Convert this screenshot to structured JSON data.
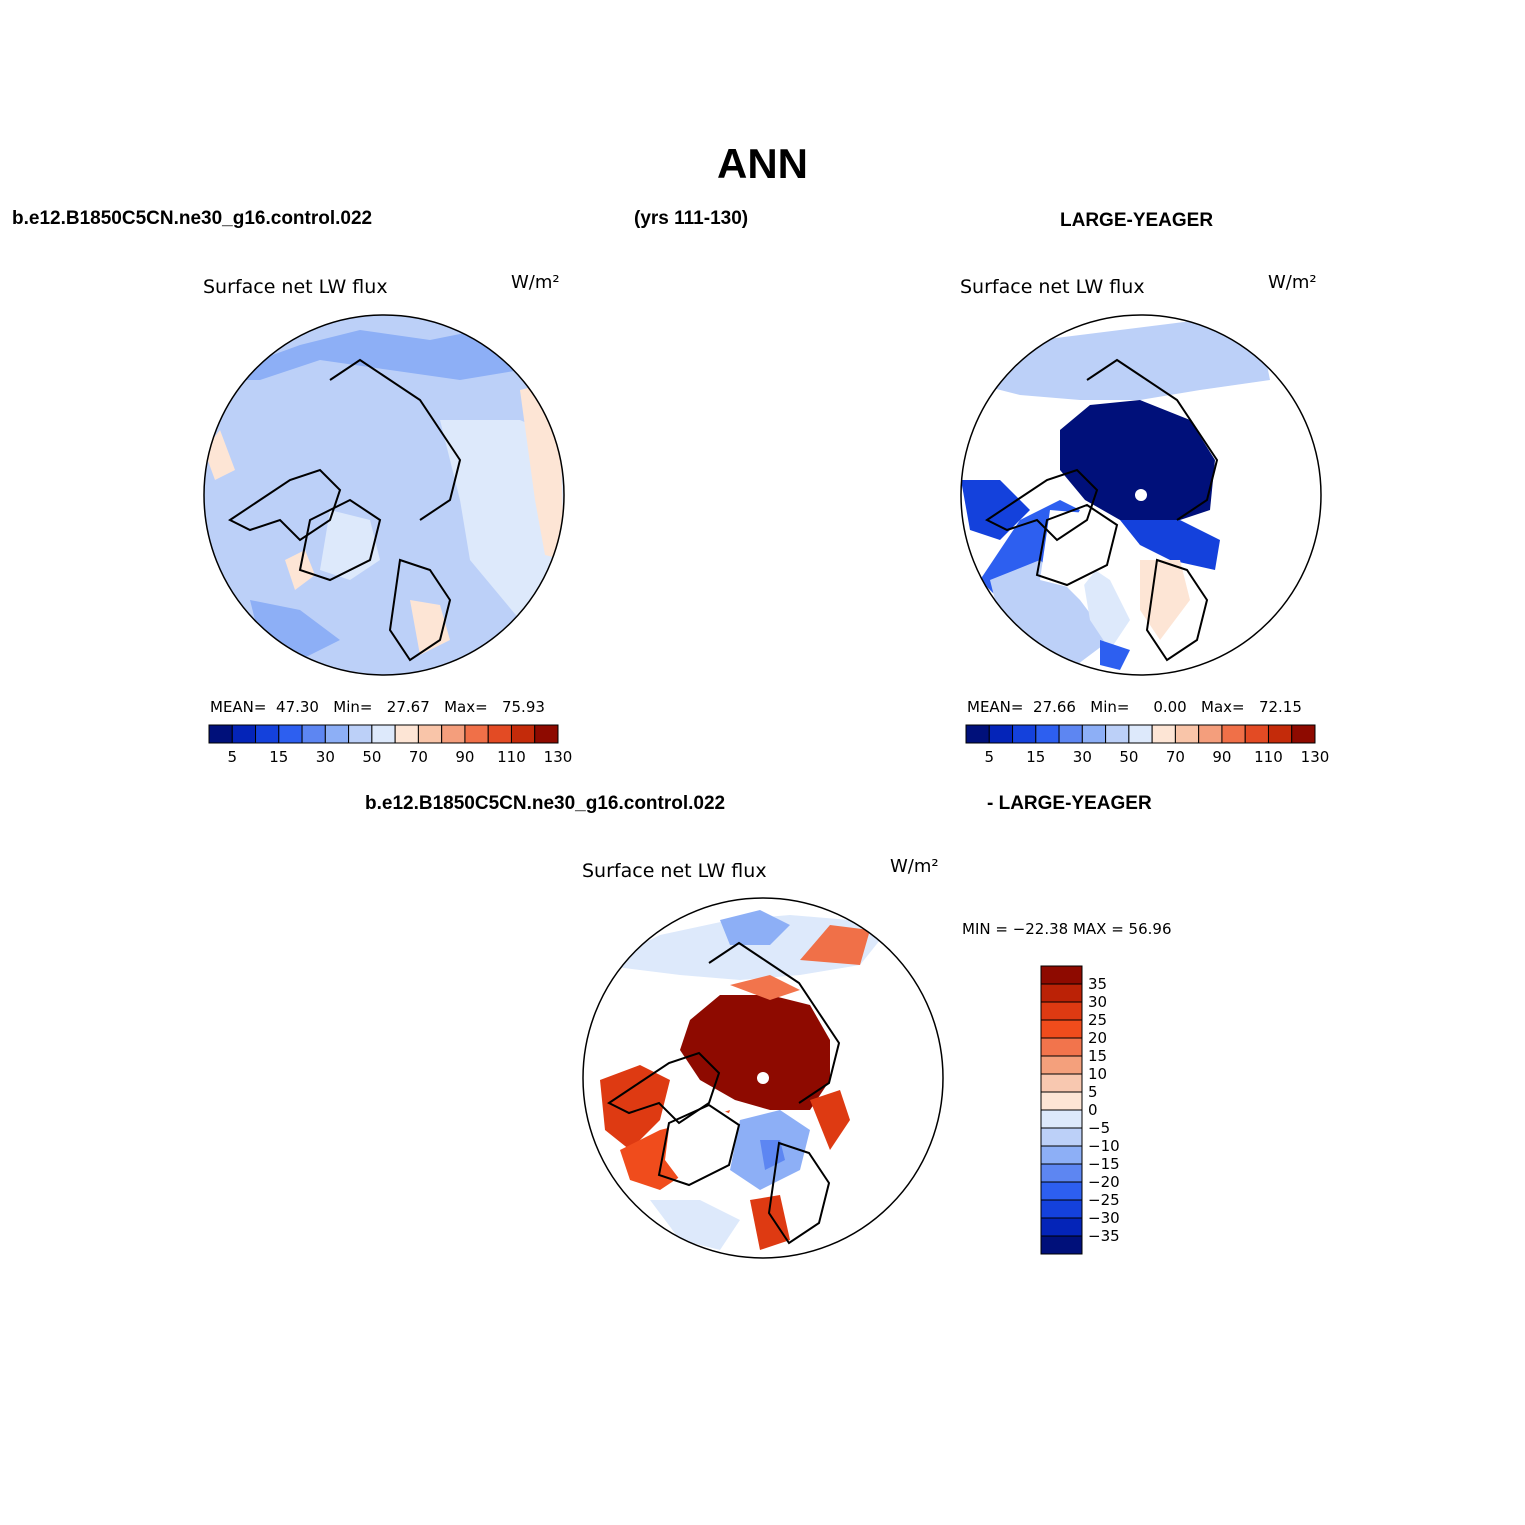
{
  "title": "ANN",
  "headers": {
    "case": "b.e12.B1850C5CN.ne30_g16.control.022",
    "years": "(yrs 111-130)",
    "obs": "LARGE-YEAGER",
    "diff_left": "b.e12.B1850C5CN.ne30_g16.control.022",
    "diff_right": "- LARGE-YEAGER"
  },
  "panels": [
    {
      "title": "Surface net LW flux",
      "units": "W/m²",
      "stats": {
        "mean_label": "MEAN=",
        "mean": "47.30",
        "min_label": "Min=",
        "min": "27.67",
        "max_label": "Max=",
        "max": "75.93"
      }
    },
    {
      "title": "Surface net LW flux",
      "units": "W/m²",
      "stats": {
        "mean_label": "MEAN=",
        "mean": "27.66",
        "min_label": "Min=",
        "min": "0.00",
        "max_label": "Max=",
        "max": "72.15"
      }
    },
    {
      "title": "Surface net LW flux",
      "units": "W/m²",
      "stats": {
        "minmax": "MIN = −22.38 MAX =   56.96"
      }
    }
  ],
  "colorbar_abs": {
    "colors": [
      "#00107a",
      "#0424b8",
      "#1441dc",
      "#2d5ff0",
      "#5d86f2",
      "#8daff6",
      "#bcd0f8",
      "#dde9fb",
      "#fde5d5",
      "#f9c5a9",
      "#f49e7c",
      "#f07048",
      "#e34b24",
      "#c42b0a",
      "#8e0a00"
    ],
    "labels": [
      "5",
      "15",
      "30",
      "50",
      "70",
      "90",
      "110",
      "130"
    ]
  },
  "colorbar_diff": {
    "colors": [
      "#8e0a00",
      "#bb2206",
      "#de3a12",
      "#f04c1c",
      "#f2744c",
      "#f4a07c",
      "#f8c8b0",
      "#fde5d5",
      "#dde9fb",
      "#bcd0f8",
      "#8daff6",
      "#5d86f2",
      "#2d5ff0",
      "#1441dc",
      "#0424b8",
      "#00107a"
    ],
    "labels": [
      "35",
      "30",
      "25",
      "20",
      "15",
      "10",
      "5",
      "0",
      "−5",
      "−10",
      "−15",
      "−20",
      "−25",
      "−30",
      "−35"
    ]
  }
}
